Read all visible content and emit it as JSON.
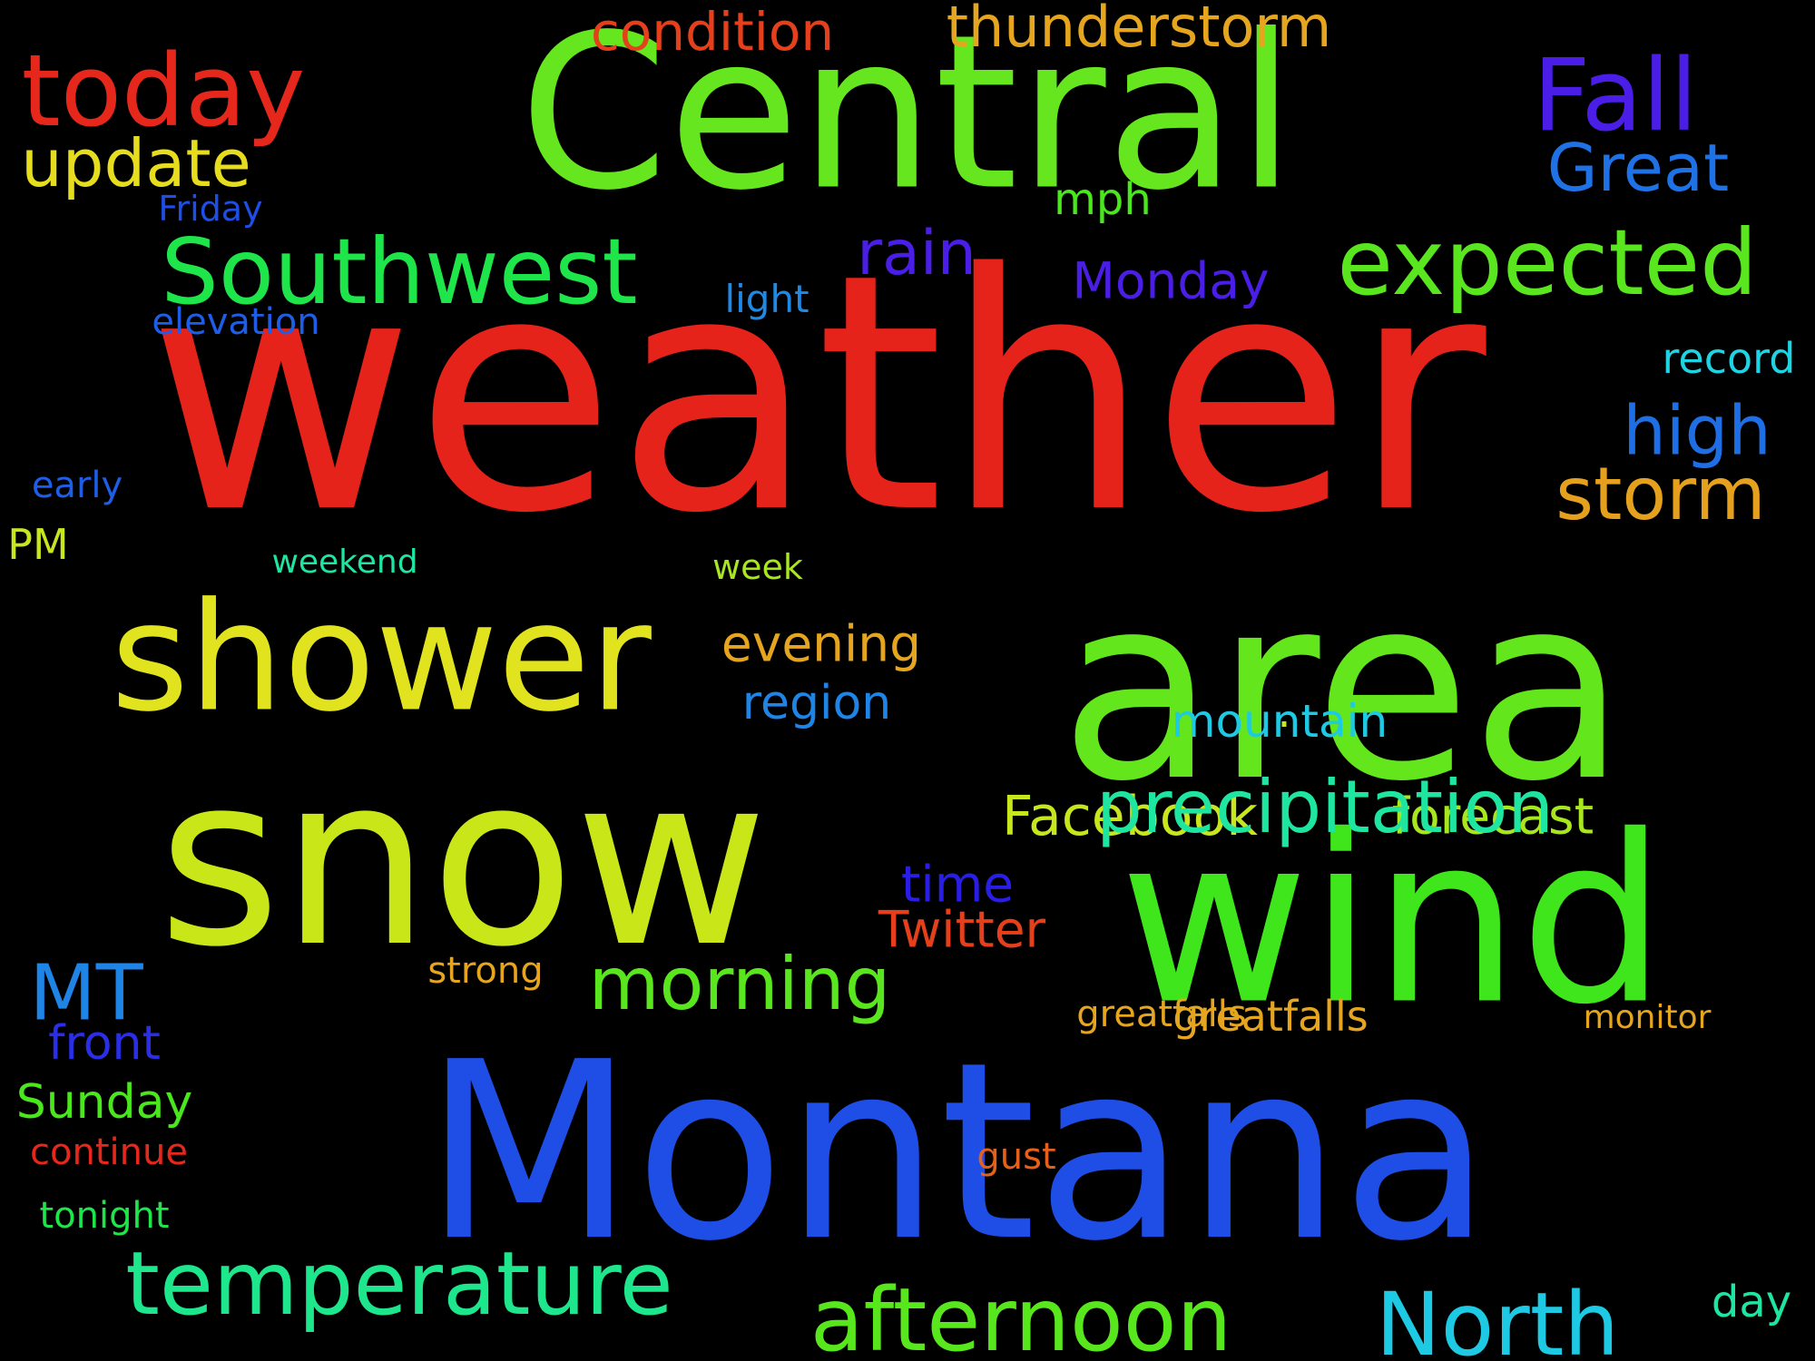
{
  "background_color": "#000000",
  "words": [
    {
      "text": "weather",
      "color": "#e5231b"
    },
    {
      "text": "area",
      "color": "#63e61c"
    },
    {
      "text": "snow",
      "color": "#c9e619"
    },
    {
      "text": "Montana",
      "color": "#1e4ee6"
    },
    {
      "text": "Central",
      "color": "#66e61e"
    },
    {
      "text": "wind",
      "color": "#3fe61c"
    },
    {
      "text": "shower",
      "color": "#e1e31e"
    },
    {
      "text": "today",
      "color": "#e5281b"
    },
    {
      "text": "Southwest",
      "color": "#1ee64a"
    },
    {
      "text": "expected",
      "color": "#5ae61f"
    },
    {
      "text": "North",
      "color": "#1ec9e3"
    },
    {
      "text": "afternoon",
      "color": "#58e61c"
    },
    {
      "text": "temperature",
      "color": "#1ee68c"
    },
    {
      "text": "morning",
      "color": "#5ae61e"
    },
    {
      "text": "storm",
      "color": "#e5a11e"
    },
    {
      "text": "high",
      "color": "#1e6fe6"
    },
    {
      "text": "Fall",
      "color": "#4a1ee6"
    },
    {
      "text": "thunderstorm",
      "color": "#e5a51e"
    },
    {
      "text": "condition",
      "color": "#e5401b"
    },
    {
      "text": "update",
      "color": "#e5dd1e"
    },
    {
      "text": "Great",
      "color": "#1e72e6"
    },
    {
      "text": "Facebook",
      "color": "#c8e61e"
    },
    {
      "text": "forecast",
      "color": "#a8e61e"
    },
    {
      "text": "MT",
      "color": "#1e84e6"
    },
    {
      "text": "evening",
      "color": "#e5a51e"
    },
    {
      "text": "rain",
      "color": "#4a1ee6"
    },
    {
      "text": "Monday",
      "color": "#4a1ee6"
    },
    {
      "text": "Twitter",
      "color": "#e5401b"
    },
    {
      "text": "time",
      "color": "#2a1ee6"
    },
    {
      "text": "record",
      "color": "#1ed4e3"
    },
    {
      "text": "region",
      "color": "#1e84e6"
    },
    {
      "text": "mountain",
      "color": "#1ec9e3"
    },
    {
      "text": "greatfalls",
      "color": "#e5a51e"
    },
    {
      "text": "light",
      "color": "#1e8ae6"
    },
    {
      "text": "Sunday",
      "color": "#4ae61e"
    },
    {
      "text": "front",
      "color": "#2a2ee6"
    },
    {
      "text": "mph",
      "color": "#4ae61e"
    },
    {
      "text": "elevation",
      "color": "#1e5ee6"
    },
    {
      "text": "PM",
      "color": "#c8e61e"
    },
    {
      "text": "day",
      "color": "#1ee6a0"
    },
    {
      "text": "week",
      "color": "#a8e61e"
    },
    {
      "text": ".",
      "color": "#c8e61e"
    },
    {
      "text": "continue",
      "color": "#e5281b"
    },
    {
      "text": "weekend",
      "color": "#1ee6a0"
    },
    {
      "text": "greatfalls",
      "color": "#e5a51e"
    },
    {
      "text": "monitor",
      "color": "#e5a51e"
    },
    {
      "text": "strong",
      "color": "#e5a51e"
    },
    {
      "text": "gust",
      "color": "#e5601b"
    },
    {
      "text": "early",
      "color": "#1e5ee6"
    },
    {
      "text": "tonight",
      "color": "#1ee64a"
    },
    {
      "text": "Friday",
      "color": "#1e4ee6"
    },
    {
      "text": "precipitation",
      "color": "#1ee6a0"
    }
  ]
}
